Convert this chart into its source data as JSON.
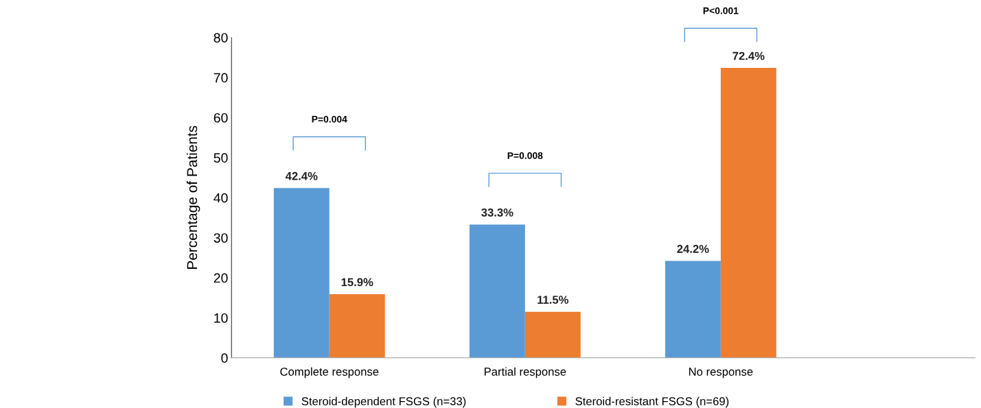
{
  "chart_data": {
    "type": "bar",
    "ylabel": "Percentage of Patients",
    "categories": [
      "Complete response",
      "Partial response",
      "No response"
    ],
    "series": [
      {
        "name": "Steroid-dependent FSGS (n=33)",
        "color": "#5b9bd5",
        "values": [
          42.4,
          33.3,
          24.2
        ],
        "value_labels": [
          "42.4%",
          "33.3%",
          "24.2%"
        ]
      },
      {
        "name": "Steroid-resistant FSGS (n=69)",
        "color": "#ed7d31",
        "values": [
          15.9,
          11.5,
          72.4
        ],
        "value_labels": [
          "15.9%",
          "11.5%",
          "72.4%"
        ]
      }
    ],
    "ylim": [
      0,
      80
    ],
    "yticks": [
      0,
      10,
      20,
      30,
      40,
      50,
      60,
      70,
      80
    ],
    "grid": false,
    "legend": "bottom",
    "annotations": [
      "P=0.004",
      "P=0.008",
      "P<0.001"
    ]
  }
}
